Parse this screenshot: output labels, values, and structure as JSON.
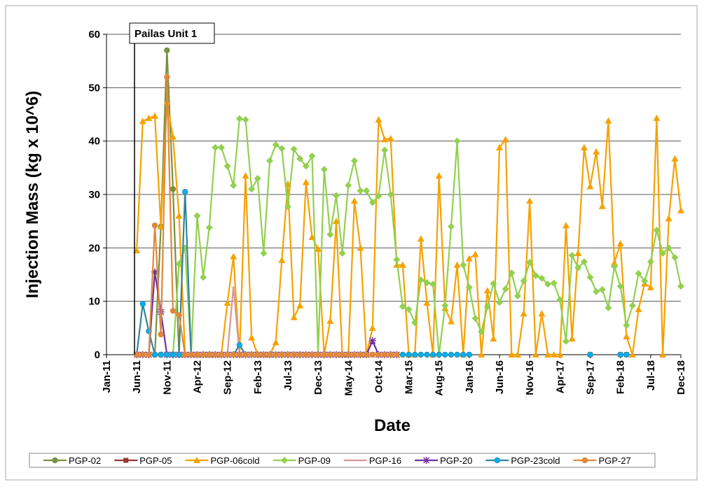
{
  "chart_data": {
    "type": "line",
    "annotation": "Pailas Unit 1",
    "y_label": "Injection Mass (kg x 10^6)",
    "x_label": "Date",
    "ylim": [
      0,
      60
    ],
    "yticks": [
      0,
      10,
      20,
      30,
      40,
      50,
      60
    ],
    "grid": true,
    "xlim": [
      "Jan-11",
      "Dec-18"
    ],
    "xticks": [
      "Jan-11",
      "Jun-11",
      "Nov-11",
      "Apr-12",
      "Sep-12",
      "Feb-13",
      "Jul-13",
      "Dec-13",
      "May-14",
      "Oct-14",
      "Mar-15",
      "Aug-15",
      "Jan-16",
      "Jun-16",
      "Nov-16",
      "Apr-17",
      "Sep-17",
      "Feb-18",
      "Jul-18",
      "Dec-18"
    ],
    "legend": "bottom",
    "x": [
      "Jun-11",
      "Jul-11",
      "Aug-11",
      "Sep-11",
      "Oct-11",
      "Nov-11",
      "Dec-11",
      "Jan-12",
      "Feb-12",
      "Mar-12",
      "Apr-12",
      "May-12",
      "Jun-12",
      "Jul-12",
      "Aug-12",
      "Sep-12",
      "Oct-12",
      "Nov-12",
      "Dec-12",
      "Jan-13",
      "Feb-13",
      "Mar-13",
      "Apr-13",
      "May-13",
      "Jun-13",
      "Jul-13",
      "Aug-13",
      "Sep-13",
      "Oct-13",
      "Nov-13",
      "Dec-13",
      "Jan-14",
      "Feb-14",
      "Mar-14",
      "Apr-14",
      "May-14",
      "Jun-14",
      "Jul-14",
      "Aug-14",
      "Sep-14",
      "Oct-14",
      "Nov-14",
      "Dec-14",
      "Jan-15",
      "Feb-15",
      "Mar-15",
      "Apr-15",
      "May-15",
      "Jun-15",
      "Jul-15",
      "Aug-15",
      "Sep-15",
      "Oct-15",
      "Nov-15",
      "Dec-15",
      "Jan-16",
      "Feb-16",
      "Mar-16",
      "Apr-16",
      "May-16",
      "Jun-16",
      "Jul-16",
      "Aug-16",
      "Sep-16",
      "Oct-16",
      "Nov-16",
      "Dec-16",
      "Jan-17",
      "Feb-17",
      "Mar-17",
      "Apr-17",
      "May-17",
      "Jun-17",
      "Jul-17",
      "Aug-17",
      "Sep-17",
      "Oct-17",
      "Nov-17",
      "Dec-17",
      "Jan-18",
      "Feb-18",
      "Mar-18",
      "Apr-18",
      "May-18",
      "Jun-18",
      "Jul-18",
      "Aug-18",
      "Sep-18",
      "Oct-18",
      "Nov-18",
      "Dec-18"
    ],
    "series": [
      {
        "name": "PGP-02",
        "color": "#76923c",
        "marker": "circle",
        "values": [
          0,
          0,
          0,
          0,
          24,
          57,
          31,
          0,
          0,
          null,
          null,
          null,
          null,
          null,
          null,
          null,
          null,
          null,
          null,
          null,
          null,
          null,
          null,
          null,
          null,
          null,
          null,
          null,
          null,
          null,
          null,
          null,
          null,
          null,
          null,
          null,
          null,
          null,
          null,
          null,
          null,
          null,
          null,
          null,
          null,
          null,
          null,
          null,
          null,
          null,
          null,
          null,
          null,
          null,
          null,
          null,
          null,
          null,
          null,
          null,
          null,
          null,
          null,
          null,
          null,
          null,
          null,
          null,
          null,
          null,
          null,
          null,
          null,
          null,
          null,
          null,
          null,
          null,
          null,
          null,
          null,
          null,
          null,
          null,
          null,
          null,
          null,
          null,
          null,
          null,
          null
        ]
      },
      {
        "name": "PGP-05",
        "color": "#953735",
        "marker": "square",
        "values": [
          0,
          0,
          0,
          0,
          0,
          0,
          0,
          0,
          0,
          0,
          0,
          0,
          0,
          0,
          0,
          0,
          0,
          0,
          0,
          0,
          0,
          0,
          0,
          0,
          0,
          0,
          0,
          0,
          0,
          0,
          0,
          0,
          0,
          0,
          0,
          0,
          0,
          0,
          0,
          0,
          0,
          0,
          0,
          0,
          null,
          null,
          null,
          null,
          null,
          null,
          null,
          null,
          null,
          null,
          null,
          null,
          null,
          null,
          null,
          null,
          null,
          null,
          null,
          null,
          null,
          null,
          null,
          null,
          null,
          null,
          null,
          null,
          null,
          null,
          null,
          0,
          null,
          null,
          null,
          null,
          0,
          0,
          null,
          null,
          null,
          null,
          null,
          null,
          null,
          null,
          null
        ]
      },
      {
        "name": "PGP-06cold",
        "color": "#f6a100",
        "marker": "triangle",
        "values": [
          19.5,
          43.7,
          44.3,
          44.7,
          24,
          47.3,
          40.8,
          26,
          0,
          0,
          0,
          0,
          0,
          0,
          0,
          9.7,
          18.4,
          0,
          33.5,
          3.2,
          0,
          0,
          0,
          2.3,
          17.7,
          32,
          7,
          9.2,
          32.3,
          22,
          19.8,
          0,
          6.3,
          25,
          0,
          0,
          28.8,
          20,
          0,
          5,
          44,
          40.3,
          40.5,
          16.8,
          16.8,
          0,
          0,
          21.7,
          9.7,
          0,
          33.5,
          8.7,
          6.2,
          16.8,
          0,
          18,
          18.8,
          0,
          12,
          3,
          38.8,
          40.3,
          0,
          0,
          7.7,
          28.8,
          0,
          7.7,
          0,
          0,
          0,
          24.2,
          3,
          19,
          38.8,
          31.5,
          38,
          27.8,
          43.8,
          17.2,
          20.8,
          3.4,
          0,
          8.5,
          13.3,
          12.6,
          44.3,
          0,
          25.5,
          36.7,
          27
        ]
      },
      {
        "name": "PGP-09",
        "color": "#92d050",
        "marker": "diamond",
        "values": [
          0,
          0,
          0,
          0,
          0,
          0,
          0,
          17,
          20,
          0,
          26,
          14.5,
          23.8,
          38.8,
          38.8,
          35.3,
          31.7,
          44.2,
          44,
          31,
          33,
          19,
          36.3,
          39.3,
          38.6,
          27.7,
          38.5,
          36.7,
          35.3,
          37.2,
          0,
          34.7,
          22.5,
          29.8,
          19,
          31.7,
          36.3,
          30.7,
          30.7,
          28.5,
          29.7,
          38.3,
          30,
          17.8,
          9,
          8.5,
          6,
          14,
          13.5,
          13.2,
          0,
          9.2,
          24,
          40,
          16.8,
          12.6,
          6.8,
          4.3,
          9,
          13.3,
          9.8,
          12.3,
          15.3,
          11,
          13.8,
          17.3,
          14.8,
          14.3,
          13.2,
          13.4,
          10.3,
          2.5,
          18.6,
          16.3,
          17.4,
          14.5,
          11.8,
          12.2,
          8.8,
          16.5,
          12.8,
          5.5,
          9.2,
          15.2,
          13.8,
          17.4,
          23.3,
          19,
          20,
          18.2,
          12.8
        ]
      },
      {
        "name": "PGP-16",
        "color": "#d99694",
        "marker": "none",
        "values": [
          0,
          0,
          0,
          0,
          0,
          0,
          0,
          0,
          0,
          0,
          0,
          0,
          0,
          0,
          0,
          0,
          12.8,
          0,
          0,
          0,
          0,
          null,
          null,
          null,
          null,
          null,
          null,
          null,
          null,
          null,
          null,
          null,
          null,
          null,
          null,
          null,
          null,
          null,
          null,
          null,
          null,
          null,
          null,
          null,
          null,
          null,
          null,
          null,
          null,
          null,
          null,
          null,
          null,
          null,
          null,
          null,
          null,
          null,
          null,
          null,
          null,
          null,
          null,
          null,
          null,
          null,
          null,
          null,
          null,
          null,
          null,
          null,
          null,
          null,
          null,
          null,
          null,
          null,
          null,
          null,
          null,
          null,
          null,
          null,
          null,
          null,
          null,
          null,
          null,
          null,
          null
        ]
      },
      {
        "name": "PGP-20",
        "color": "#7030a0",
        "marker": "star",
        "values": [
          0,
          0,
          0,
          15.5,
          8,
          0,
          0,
          0,
          0,
          0,
          0,
          0,
          0,
          0,
          0,
          0,
          0,
          0,
          0,
          0,
          0,
          0,
          0,
          0,
          0,
          0,
          0,
          0,
          0,
          0,
          0,
          0,
          0,
          0,
          0,
          0,
          0,
          0,
          0,
          2.6,
          0,
          0,
          0,
          0,
          null,
          null,
          null,
          null,
          null,
          null,
          null,
          null,
          null,
          null,
          null,
          null,
          null,
          null,
          null,
          null,
          null,
          null,
          null,
          null,
          null,
          null,
          null,
          null,
          null,
          null,
          null,
          null,
          null,
          null,
          null,
          null,
          null,
          null,
          null,
          null,
          null,
          null,
          null,
          null,
          null,
          null,
          null,
          null,
          null,
          null,
          null
        ]
      },
      {
        "name": "PGP-23cold",
        "color": "#31859c",
        "marker": "circle",
        "marker_color": "#00b0f0",
        "values": [
          0,
          9.5,
          4.4,
          0,
          0,
          0,
          0,
          0,
          30.5,
          0,
          0,
          0,
          0,
          0,
          0,
          0,
          0,
          1.8,
          0,
          0,
          0,
          0,
          0,
          0,
          0,
          0,
          0,
          0,
          0,
          0,
          0,
          0,
          0,
          0,
          0,
          0,
          0,
          0,
          0,
          0,
          0,
          0,
          0,
          0,
          0,
          0,
          0,
          0,
          0,
          0,
          0,
          0,
          0,
          0,
          0,
          0,
          null,
          null,
          null,
          null,
          null,
          null,
          null,
          null,
          null,
          null,
          null,
          null,
          null,
          null,
          null,
          null,
          null,
          null,
          null,
          0,
          null,
          null,
          null,
          null,
          0,
          0,
          null,
          null,
          null,
          null,
          null,
          null,
          null,
          null,
          null
        ]
      },
      {
        "name": "PGP-27",
        "color": "#e0873a",
        "marker": "circle",
        "values": [
          0,
          0,
          0,
          24.2,
          3.8,
          52,
          8.2,
          7.4,
          0,
          0,
          0,
          0,
          0,
          0,
          0,
          0,
          0,
          0,
          0,
          0,
          0,
          0,
          0,
          0,
          0,
          0,
          0,
          0,
          0,
          0,
          0,
          0,
          0,
          0,
          0,
          0,
          0,
          0,
          0,
          0,
          0,
          0,
          0,
          0,
          null,
          null,
          null,
          null,
          null,
          null,
          null,
          null,
          null,
          null,
          null,
          null,
          null,
          null,
          null,
          null,
          null,
          null,
          null,
          null,
          null,
          null,
          null,
          null,
          null,
          null,
          null,
          null,
          null,
          null,
          null,
          null,
          null,
          null,
          null,
          null,
          null,
          null,
          null,
          null,
          null,
          null,
          null,
          null,
          null,
          null,
          null
        ]
      }
    ]
  }
}
